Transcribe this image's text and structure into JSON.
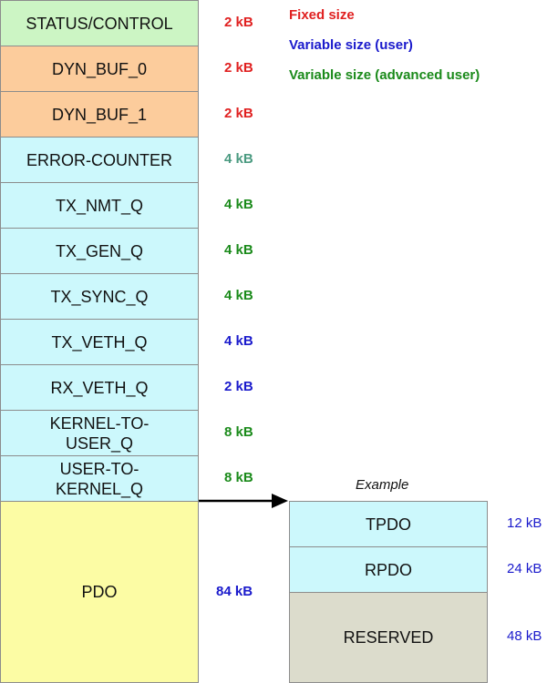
{
  "colors": {
    "fixed": "#e02020",
    "user": "#1a1acc",
    "advanced": "#1a8a1a",
    "muted_green": "#4a9a80",
    "green_fill": "#ccf5c4",
    "orange_fill": "#fccc9c",
    "cyan_fill": "#ccf8fc",
    "yellow_fill": "#fcfca4",
    "gray_fill": "#dcdccc"
  },
  "legend": {
    "fixed": "Fixed size",
    "user": "Variable size (user)",
    "advanced": "Variable size (advanced user)"
  },
  "blocks": [
    {
      "label": "STATUS/CONTROL",
      "size": "2 kB"
    },
    {
      "label": "DYN_BUF_0",
      "size": "2 kB"
    },
    {
      "label": "DYN_BUF_1",
      "size": "2 kB"
    },
    {
      "label": "ERROR-COUNTER",
      "size": "4 kB"
    },
    {
      "label": "TX_NMT_Q",
      "size": "4 kB"
    },
    {
      "label": "TX_GEN_Q",
      "size": "4 kB"
    },
    {
      "label": "TX_SYNC_Q",
      "size": "4 kB"
    },
    {
      "label": "TX_VETH_Q",
      "size": "4 kB"
    },
    {
      "label": "RX_VETH_Q",
      "size": "2 kB"
    },
    {
      "label": "KERNEL-TO-\nUSER_Q",
      "size": "8 kB"
    },
    {
      "label": "USER-TO-\nKERNEL_Q",
      "size": "8 kB"
    },
    {
      "label": "PDO",
      "size": "84 kB"
    }
  ],
  "example": {
    "title": "Example",
    "blocks": [
      {
        "label": "TPDO",
        "size": "12 kB"
      },
      {
        "label": "RPDO",
        "size": "24 kB"
      },
      {
        "label": "RESERVED",
        "size": "48 kB"
      }
    ]
  }
}
